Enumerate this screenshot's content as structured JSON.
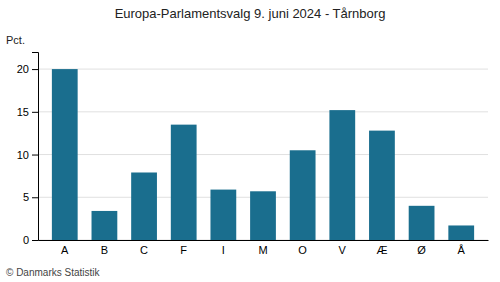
{
  "chart_data": {
    "type": "bar",
    "title": "Europa-Parlamentsvalg 9. juni 2024 - Tårnborg",
    "ylabel": "Pct.",
    "annotations": [
      "© Danmarks Statistik"
    ],
    "categories": [
      "A",
      "B",
      "C",
      "F",
      "I",
      "M",
      "O",
      "V",
      "Æ",
      "Ø",
      "Å"
    ],
    "values": [
      20.0,
      3.4,
      7.9,
      13.5,
      5.9,
      5.7,
      10.5,
      15.2,
      12.8,
      4.0,
      1.7
    ],
    "color": "#1a6e8e",
    "ylim": [
      0,
      22
    ],
    "yticks": [
      0,
      5,
      10,
      15,
      20
    ],
    "grid": true
  }
}
